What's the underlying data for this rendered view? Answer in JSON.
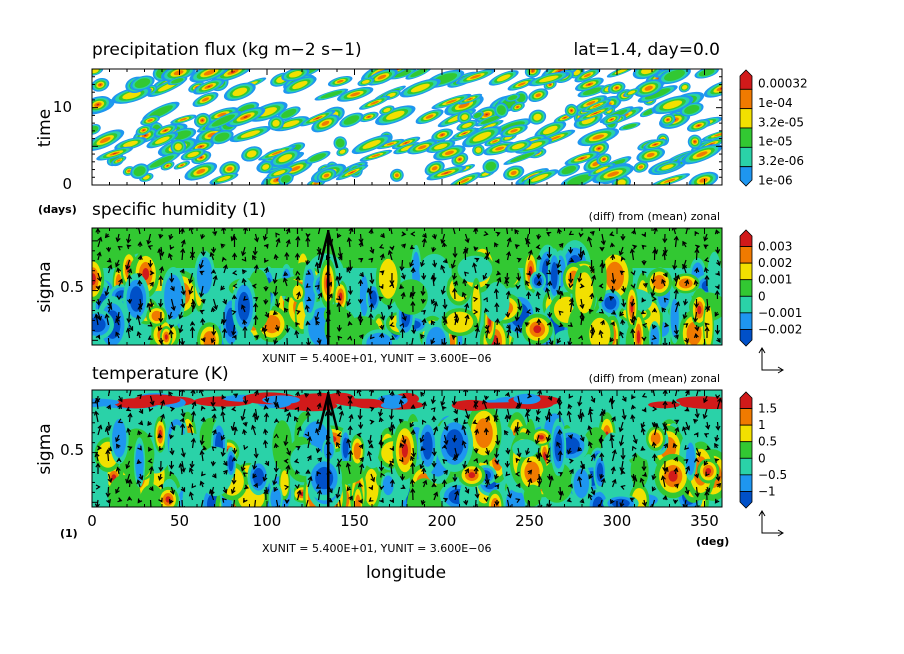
{
  "chart_data": [
    {
      "type": "heatmap",
      "title": "precipitation flux (kg m−2 s−1)",
      "annotation": "lat=1.4, day=0.0",
      "ylabel": "time",
      "yunit": "(days)",
      "ylim": [
        0,
        15
      ],
      "yticks": [
        "0",
        "10"
      ],
      "xlim": [
        0,
        360
      ],
      "colorbar": [
        "0.00032",
        "1e-04",
        "3.2e-05",
        "1e-05",
        "3.2e-06",
        "1e-06"
      ],
      "colors": [
        "#d11a1a",
        "#f07a00",
        "#f2e000",
        "#32c832",
        "#2ad2a8",
        "#1e96f0"
      ],
      "scale": "log"
    },
    {
      "type": "heatmap",
      "title": "specific humidity (1)",
      "subtitle": "(diff) from (mean) zonal",
      "ylabel": "sigma",
      "yticks": [
        "0.5"
      ],
      "ylim": [
        0,
        1
      ],
      "xlim": [
        0,
        360
      ],
      "colorbar": [
        "0.003",
        "0.002",
        "0.001",
        "0",
        "−0.001",
        "−0.002"
      ],
      "colors": [
        "#d11a1a",
        "#f07a00",
        "#f2e000",
        "#32c832",
        "#2ad2a8",
        "#1e96f0",
        "#0050c8"
      ],
      "vector_unit": "XUNIT = 5.400E+01, YUNIT = 3.600E−06"
    },
    {
      "type": "heatmap",
      "title": "temperature (K)",
      "subtitle": "(diff) from (mean) zonal",
      "ylabel": "sigma",
      "yunit": "(1)",
      "yticks": [
        "0.5"
      ],
      "ylim": [
        0,
        1
      ],
      "xlim": [
        0,
        360
      ],
      "xlabel": "longitude",
      "xunit": "(deg)",
      "xticks": [
        "0",
        "50",
        "100",
        "150",
        "200",
        "250",
        "300",
        "350"
      ],
      "colorbar": [
        "1.5",
        "1",
        "0.5",
        "0",
        "−0.5",
        "−1"
      ],
      "colors": [
        "#d11a1a",
        "#f07a00",
        "#f2e000",
        "#32c832",
        "#2ad2a8",
        "#1e96f0",
        "#0050c8"
      ],
      "vector_unit": "XUNIT = 5.400E+01, YUNIT = 3.600E−06"
    }
  ]
}
